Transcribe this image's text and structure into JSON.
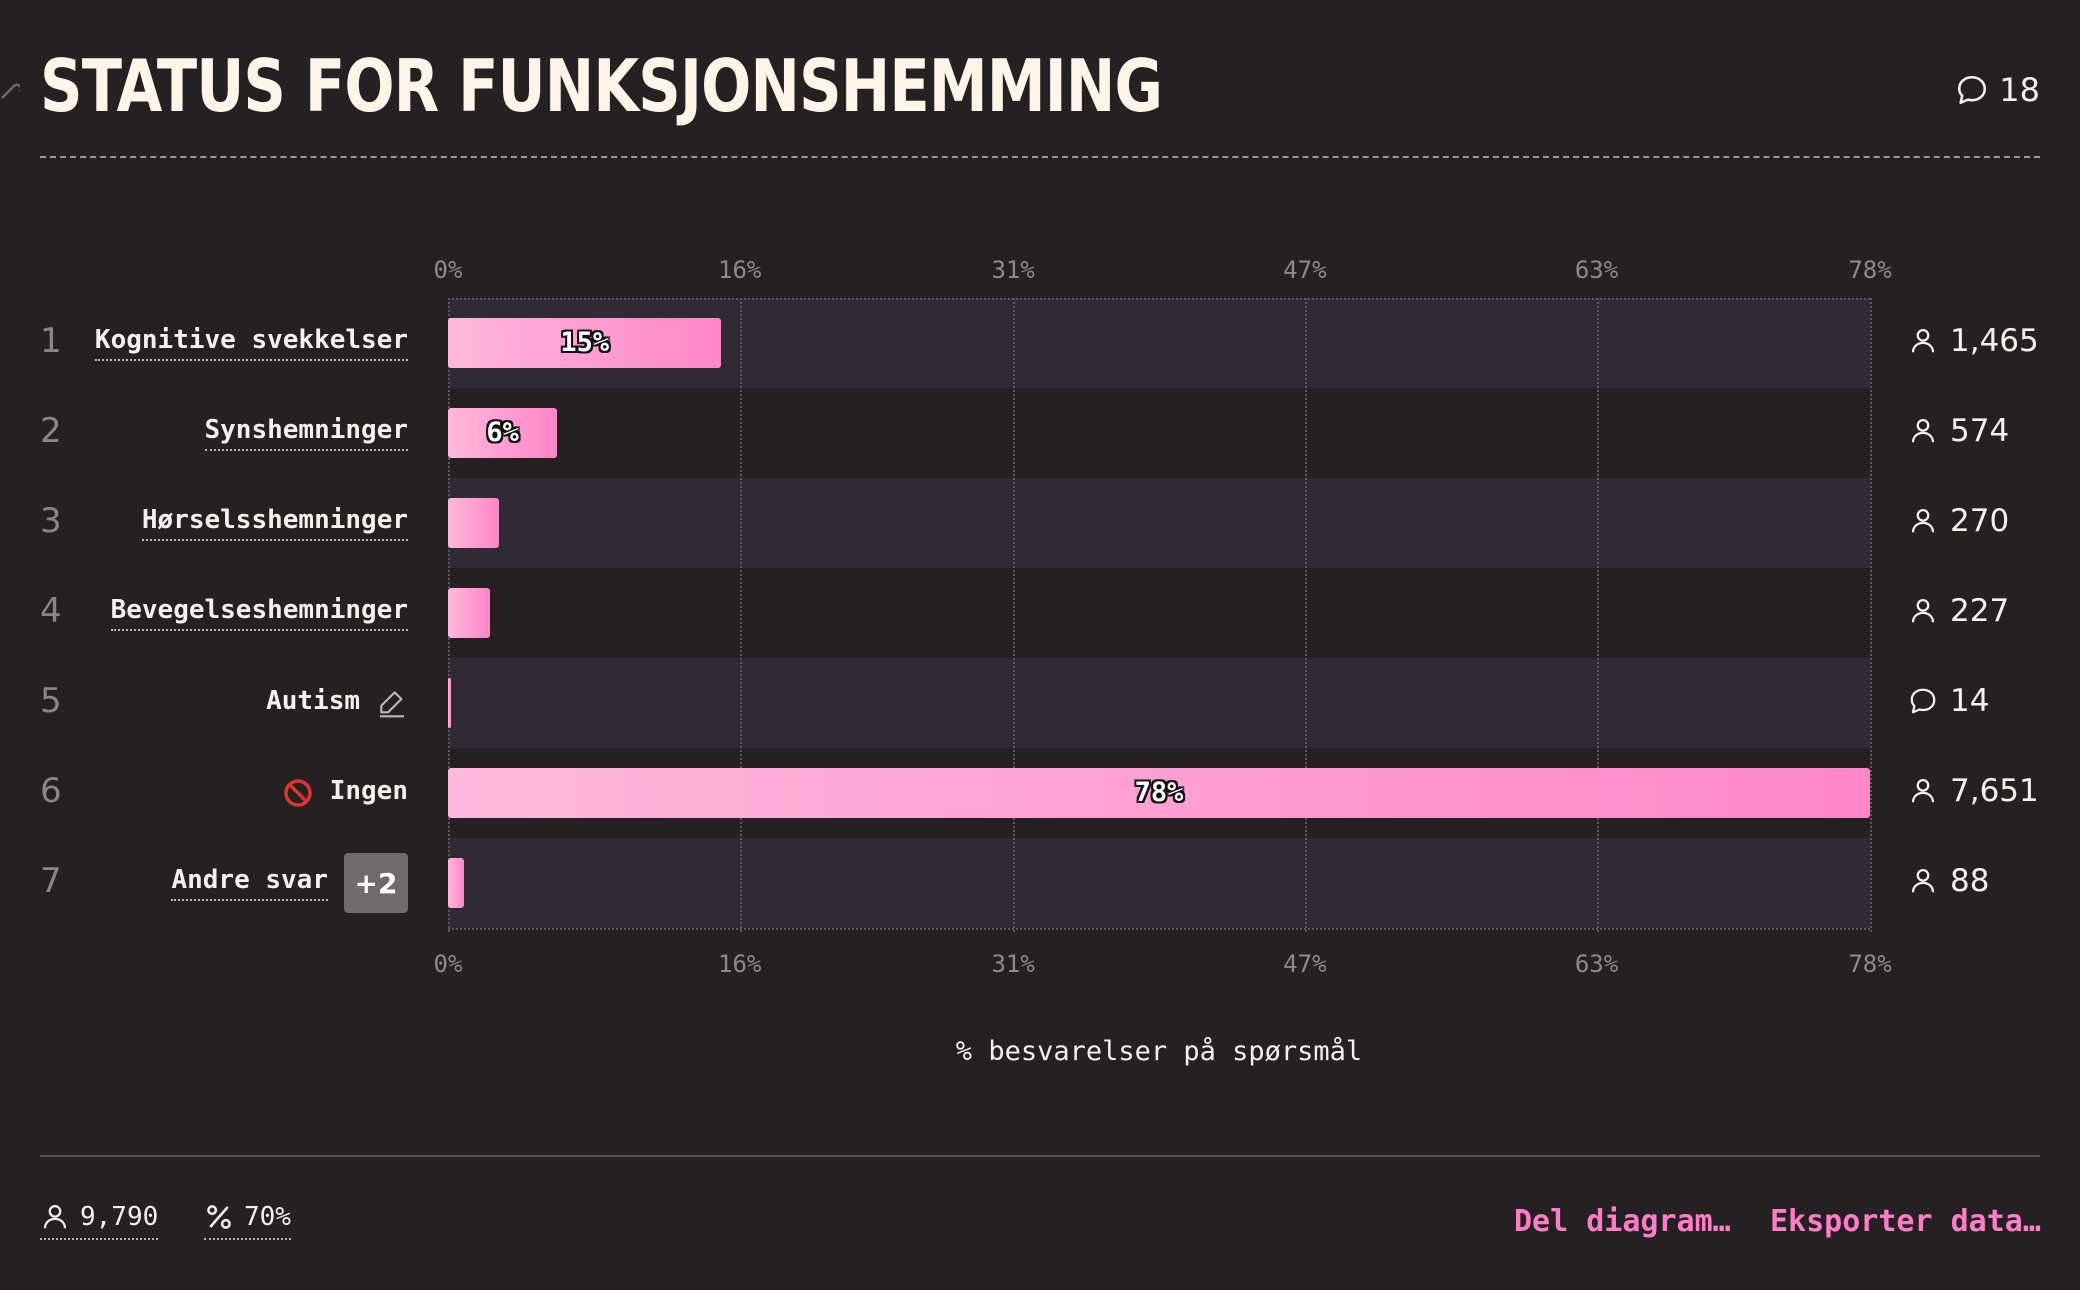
{
  "header": {
    "title": "STATUS FOR FUNKSJONSHEMMING",
    "comment_count": "18"
  },
  "colors": {
    "background": "#252123",
    "bar_start": "#ffb8dc",
    "bar_end": "#ff86c8",
    "band": "#302a34",
    "link": "#ff7cc8"
  },
  "icons": {
    "link": "link-icon",
    "comment": "comment-icon",
    "person": "person-icon",
    "edit": "pencil-icon",
    "blocked": "no-entry-icon",
    "percent": "percent-icon"
  },
  "chart_data": {
    "type": "bar",
    "orientation": "horizontal",
    "title": "",
    "xlabel": "% besvarelser på spørsmål",
    "xlim": [
      0,
      78
    ],
    "ticks": [
      0,
      16,
      31,
      47,
      63,
      78
    ],
    "tick_labels": [
      "0%",
      "16%",
      "31%",
      "47%",
      "63%",
      "78%"
    ],
    "grid": true,
    "categories": [
      "Kognitive svekkelser",
      "Synshemninger",
      "Hørselsshemninger",
      "Bevegelseshemninger",
      "Autism",
      "Ingen",
      "Andre svar"
    ],
    "values": [
      15,
      6,
      2.8,
      2.3,
      0.14,
      78,
      0.9
    ],
    "value_labels": [
      "15%",
      "6%",
      "",
      "",
      "",
      "78%",
      ""
    ],
    "ranks": [
      "1",
      "2",
      "3",
      "4",
      "5",
      "6",
      "7"
    ],
    "counts": [
      "1,465",
      "574",
      "270",
      "227",
      "14",
      "7,651",
      "88"
    ],
    "count_icons": [
      "person",
      "person",
      "person",
      "person",
      "comment",
      "person",
      "person"
    ],
    "extra_badge": "+2"
  },
  "footer": {
    "respondents": "9,790",
    "response_rate": "70%",
    "share_label": "Del diagram…",
    "export_label": "Eksporter data…"
  }
}
